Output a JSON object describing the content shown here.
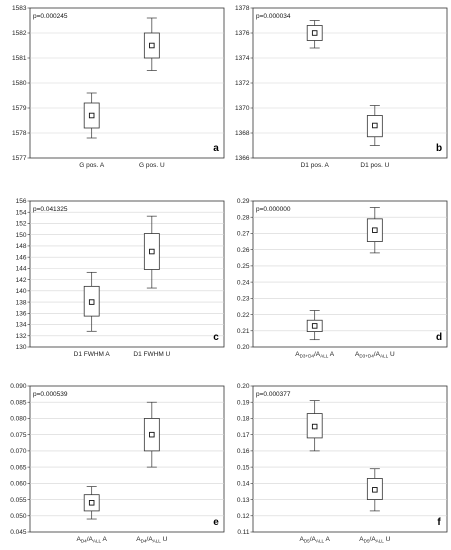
{
  "chart_data": [
    {
      "type": "box",
      "annotation": "p=0.000245",
      "panel_label": "a",
      "ylim": [
        1577,
        1583
      ],
      "yticks": [
        "1577",
        "1578",
        "1579",
        "1580",
        "1581",
        "1582",
        "1583"
      ],
      "categories": [
        {
          "label": "G pos. A"
        },
        {
          "label": "G pos. U"
        }
      ],
      "boxes": [
        {
          "mean": 1578.7,
          "q1": 1578.2,
          "q3": 1579.2,
          "whisker_low": 1577.8,
          "whisker_high": 1579.6
        },
        {
          "mean": 1581.5,
          "q1": 1581.0,
          "q3": 1582.0,
          "whisker_low": 1580.5,
          "whisker_high": 1582.6
        }
      ]
    },
    {
      "type": "box",
      "annotation": "p=0.000034",
      "panel_label": "b",
      "ylim": [
        1366,
        1378
      ],
      "yticks": [
        "1366",
        "1368",
        "1370",
        "1372",
        "1374",
        "1376",
        "1378"
      ],
      "categories": [
        {
          "label": "D1 pos. A"
        },
        {
          "label": "D1 pos. U"
        }
      ],
      "boxes": [
        {
          "mean": 1376.0,
          "q1": 1375.4,
          "q3": 1376.6,
          "whisker_low": 1374.8,
          "whisker_high": 1377.0
        },
        {
          "mean": 1368.6,
          "q1": 1367.7,
          "q3": 1369.4,
          "whisker_low": 1367.0,
          "whisker_high": 1370.2
        }
      ]
    },
    {
      "type": "box",
      "annotation": "p=0.041325",
      "panel_label": "c",
      "ylim": [
        130,
        156
      ],
      "yticks": [
        "130",
        "132",
        "134",
        "136",
        "138",
        "140",
        "142",
        "144",
        "146",
        "148",
        "150",
        "152",
        "154",
        "156"
      ],
      "categories": [
        {
          "label": "D1 FWHM A"
        },
        {
          "label": "D1 FWHM U"
        }
      ],
      "boxes": [
        {
          "mean": 138.0,
          "q1": 135.5,
          "q3": 140.8,
          "whisker_low": 132.8,
          "whisker_high": 143.3
        },
        {
          "mean": 147.0,
          "q1": 143.8,
          "q3": 150.2,
          "whisker_low": 140.5,
          "whisker_high": 153.3
        }
      ]
    },
    {
      "type": "box",
      "annotation": "p=0.000000",
      "panel_label": "d",
      "ylim": [
        0.2,
        0.29
      ],
      "yticks": [
        "0.20",
        "0.21",
        "0.22",
        "0.23",
        "0.24",
        "0.25",
        "0.26",
        "0.27",
        "0.28",
        "0.29"
      ],
      "categories": [
        {
          "label_main": "A",
          "label_sub": "D3+D4",
          "label_mid": "/A",
          "label_sub2": "ALL",
          "label_tail": " A"
        },
        {
          "label_main": "A",
          "label_sub": "D3+D4",
          "label_mid": "/A",
          "label_sub2": "ALL",
          "label_tail": " U"
        }
      ],
      "boxes": [
        {
          "mean": 0.213,
          "q1": 0.2095,
          "q3": 0.2165,
          "whisker_low": 0.2045,
          "whisker_high": 0.2225
        },
        {
          "mean": 0.272,
          "q1": 0.265,
          "q3": 0.279,
          "whisker_low": 0.258,
          "whisker_high": 0.286
        }
      ]
    },
    {
      "type": "box",
      "annotation": "p=0.000539",
      "panel_label": "e",
      "ylim": [
        0.045,
        0.09
      ],
      "yticks": [
        "0.045",
        "0.050",
        "0.055",
        "0.060",
        "0.065",
        "0.070",
        "0.075",
        "0.080",
        "0.085",
        "0.090"
      ],
      "categories": [
        {
          "label_main": "A",
          "label_sub": "D4",
          "label_mid": "/A",
          "label_sub2": "ALL",
          "label_tail": " A"
        },
        {
          "label_main": "A",
          "label_sub": "D4",
          "label_mid": "/A",
          "label_sub2": "ALL",
          "label_tail": " U"
        }
      ],
      "boxes": [
        {
          "mean": 0.054,
          "q1": 0.0515,
          "q3": 0.0565,
          "whisker_low": 0.049,
          "whisker_high": 0.059
        },
        {
          "mean": 0.075,
          "q1": 0.07,
          "q3": 0.08,
          "whisker_low": 0.065,
          "whisker_high": 0.085
        }
      ]
    },
    {
      "type": "box",
      "annotation": "p=0.000377",
      "panel_label": "f",
      "ylim": [
        0.11,
        0.2
      ],
      "yticks": [
        "0.11",
        "0.12",
        "0.13",
        "0.14",
        "0.15",
        "0.16",
        "0.17",
        "0.18",
        "0.19",
        "0.20"
      ],
      "categories": [
        {
          "label_main": "A",
          "label_sub": "D5",
          "label_mid": "/A",
          "label_sub2": "ALL",
          "label_tail": " A"
        },
        {
          "label_main": "A",
          "label_sub": "D5",
          "label_mid": "/A",
          "label_sub2": "ALL",
          "label_tail": " U"
        }
      ],
      "boxes": [
        {
          "mean": 0.175,
          "q1": 0.168,
          "q3": 0.183,
          "whisker_low": 0.16,
          "whisker_high": 0.191
        },
        {
          "mean": 0.136,
          "q1": 0.13,
          "q3": 0.143,
          "whisker_low": 0.123,
          "whisker_high": 0.149
        }
      ]
    }
  ]
}
